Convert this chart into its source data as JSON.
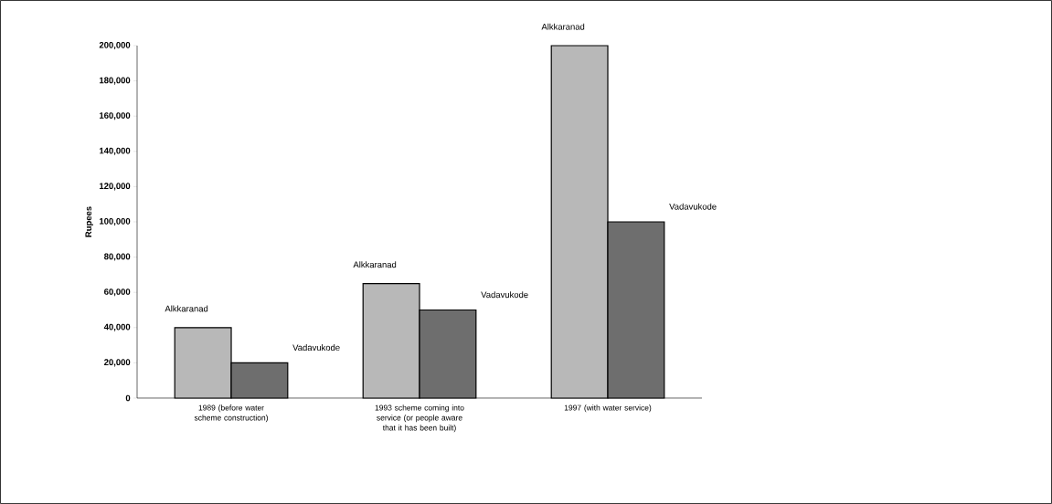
{
  "chart_data": {
    "type": "bar",
    "ylabel": "Rupees",
    "categories": [
      "1989 (before water scheme construction)",
      "1993 scheme coming into service (or people aware that it has been built)",
      "1997 (with water service)"
    ],
    "series": [
      {
        "name": "Alkkaranad",
        "color": "#b8b8b8",
        "values": [
          40000,
          65000,
          200000
        ]
      },
      {
        "name": "Vadavukode",
        "color": "#6e6e6e",
        "values": [
          20000,
          50000,
          100000
        ]
      }
    ],
    "ylim": [
      0,
      200000
    ],
    "yticks": [
      {
        "value": 0,
        "label": "0"
      },
      {
        "value": 20000,
        "label": "20,000"
      },
      {
        "value": 40000,
        "label": "40,000"
      },
      {
        "value": 60000,
        "label": "60,000"
      },
      {
        "value": 80000,
        "label": "80,000"
      },
      {
        "value": 100000,
        "label": "100,000"
      },
      {
        "value": 120000,
        "label": "120,000"
      },
      {
        "value": 140000,
        "label": "140,000"
      },
      {
        "value": 160000,
        "label": "160,000"
      },
      {
        "value": 180000,
        "label": "180,000"
      },
      {
        "value": 200000,
        "label": "200,000"
      }
    ],
    "grid": false,
    "legend": false
  }
}
